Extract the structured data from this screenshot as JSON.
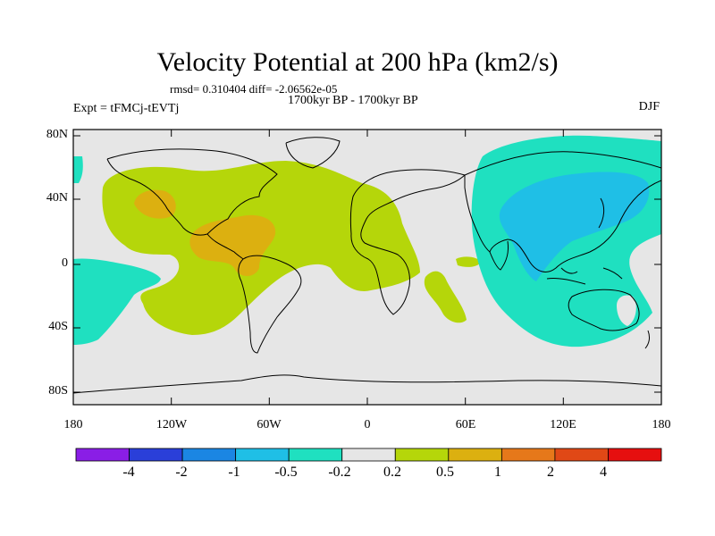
{
  "title": "Velocity Potential at 200 hPa (km2/s)",
  "stats": "rmsd= 0.310404 diff= -2.06562e-05",
  "period": "1700kyr BP - 1700kyr BP",
  "experiment": "Expt = tFMCj-tEVTj",
  "season": "DJF",
  "axes": {
    "lat_ticks": [
      "80N",
      "40N",
      "0",
      "40S",
      "80S"
    ],
    "lon_ticks": [
      "180",
      "120W",
      "60W",
      "0",
      "60E",
      "120E",
      "180"
    ]
  },
  "colorbar": {
    "labels": [
      "-4",
      "-2",
      "-1",
      "-0.5",
      "-0.2",
      "0.2",
      "0.5",
      "1",
      "2",
      "4"
    ],
    "colors": [
      "#8a1ee6",
      "#2a3fd9",
      "#1b86e3",
      "#1fbfe6",
      "#1fe0c0",
      "#e6e6e6",
      "#b5d60a",
      "#dcb010",
      "#e6781a",
      "#e04816",
      "#e60f0f"
    ]
  },
  "fields": {
    "land_color": "#ffffff",
    "ocean_color": "#e6e6e6"
  }
}
